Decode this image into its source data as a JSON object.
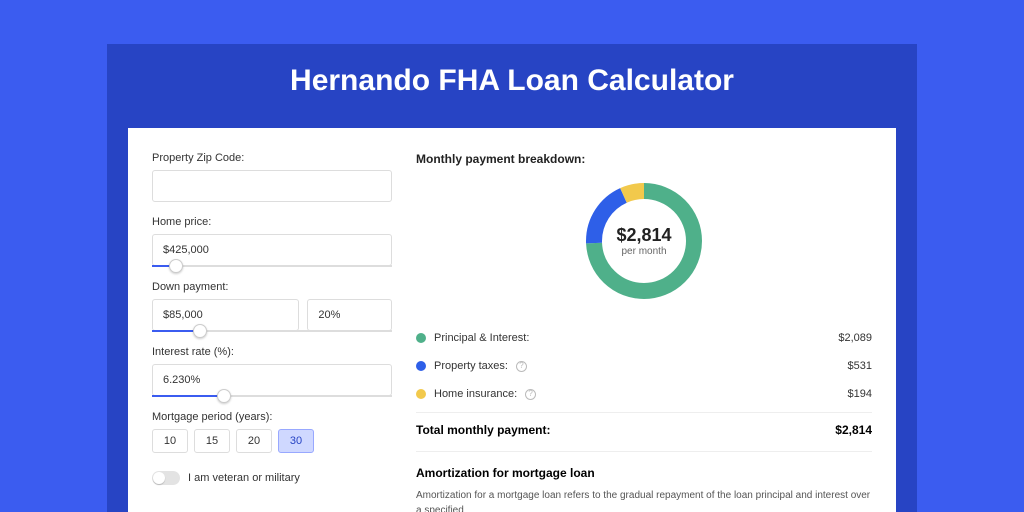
{
  "page": {
    "title": "Hernando FHA Loan Calculator",
    "bg_outer": "#3b5cf0",
    "bg_inner": "#2744c4",
    "card_bg": "#ffffff"
  },
  "form": {
    "zip": {
      "label": "Property Zip Code:",
      "value": ""
    },
    "home_price": {
      "label": "Home price:",
      "value": "$425,000",
      "slider_pct": 10
    },
    "down_payment": {
      "label": "Down payment:",
      "amount": "$85,000",
      "percent": "20%",
      "slider_pct": 20
    },
    "interest": {
      "label": "Interest rate (%):",
      "value": "6.230%",
      "slider_pct": 30
    },
    "period": {
      "label": "Mortgage period (years):",
      "options": [
        "10",
        "15",
        "20",
        "30"
      ],
      "selected": "30"
    },
    "veteran": {
      "label": "I am veteran or military",
      "checked": false
    }
  },
  "breakdown": {
    "title": "Monthly payment breakdown:",
    "center_amount": "$2,814",
    "center_sub": "per month",
    "items": [
      {
        "label": "Principal & Interest:",
        "value": "$2,089",
        "color": "#4fb08a",
        "info": false,
        "pct": 74.2
      },
      {
        "label": "Property taxes:",
        "value": "$531",
        "color": "#2e5fe8",
        "info": true,
        "pct": 18.9
      },
      {
        "label": "Home insurance:",
        "value": "$194",
        "color": "#f2c94c",
        "info": true,
        "pct": 6.9
      }
    ],
    "total": {
      "label": "Total monthly payment:",
      "value": "$2,814"
    },
    "donut": {
      "stroke_width": 16,
      "radius": 50,
      "bg": "#ffffff"
    }
  },
  "amortization": {
    "title": "Amortization for mortgage loan",
    "text": "Amortization for a mortgage loan refers to the gradual repayment of the loan principal and interest over a specified"
  }
}
